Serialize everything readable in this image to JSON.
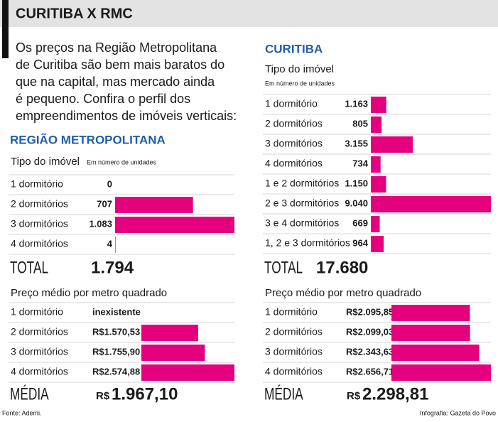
{
  "title": "CURITIBA X RMC",
  "intro": [
    "Os preços na Região Metropolitana",
    "de Curitiba são bem mais baratos do",
    "que na capital, mas mercado ainda",
    "é pequeno. Confira o perfil dos",
    "empreendimentos de imóveis verticais:"
  ],
  "regions": [
    "REGIÃO METROPOLITANA",
    "CURITIBA"
  ],
  "source": "Fonte: Ademi.",
  "credit": "Infografia: Gazeta do Povo",
  "chart_data": [
    {
      "type": "bar",
      "title": "Tipo do imóvel",
      "subtitle": "Em número de unidades",
      "color": "#e5007d",
      "categories": [
        "1 dormitório",
        "2 dormitórios",
        "3 dormitórios",
        "4 dormitórios"
      ],
      "values": [
        0,
        707,
        1083,
        4
      ],
      "value_labels": [
        "0",
        "707",
        "1.083",
        "4"
      ],
      "total_label": "TOTAL",
      "total": "1.794"
    },
    {
      "type": "bar",
      "title": "Tipo do imóvel",
      "subtitle": "Em número de unidades",
      "color": "#e5007d",
      "categories": [
        "1 dormitório",
        "2 dormitórios",
        "3 dormitórios",
        "4 dormitórios",
        "1 e 2 dormitórios",
        "2 e 3 dormitórios",
        "3 e 4 dormitórios",
        "1, 2 e 3 dormitórios"
      ],
      "values": [
        1163,
        805,
        3155,
        734,
        1150,
        9040,
        669,
        964
      ],
      "value_labels": [
        "1.163",
        "805",
        "3.155",
        "734",
        "1.150",
        "9.040",
        "669",
        "964"
      ],
      "total_label": "TOTAL",
      "total": "17.680"
    },
    {
      "type": "bar",
      "title": "Preço médio por metro quadrado",
      "color": "#e5007d",
      "categories": [
        "1 dormitório",
        "2 dormitórios",
        "3 dormitórios",
        "4 dormitórios"
      ],
      "values": [
        null,
        1570.53,
        1755.9,
        2574.88
      ],
      "value_labels": [
        "inexistente",
        "R$1.570,53",
        "R$1.755,90",
        "R$2.574,88"
      ],
      "total_label": "MÉDIA",
      "total_prefix": "R$",
      "total": "1.967,10"
    },
    {
      "type": "bar",
      "title": "Preço médio por metro quadrado",
      "color": "#e5007d",
      "categories": [
        "1 dormitório",
        "2 dormitórios",
        "3 dormitórios",
        "4 dormitórios"
      ],
      "values": [
        2095.85,
        2099.03,
        2343.63,
        2656.71
      ],
      "value_labels": [
        "R$2.095,85",
        "R$2.099,03",
        "R$2.343,63",
        "R$2.656,71"
      ],
      "total_label": "MÉDIA",
      "total_prefix": "R$",
      "total": "2.298,81"
    }
  ]
}
